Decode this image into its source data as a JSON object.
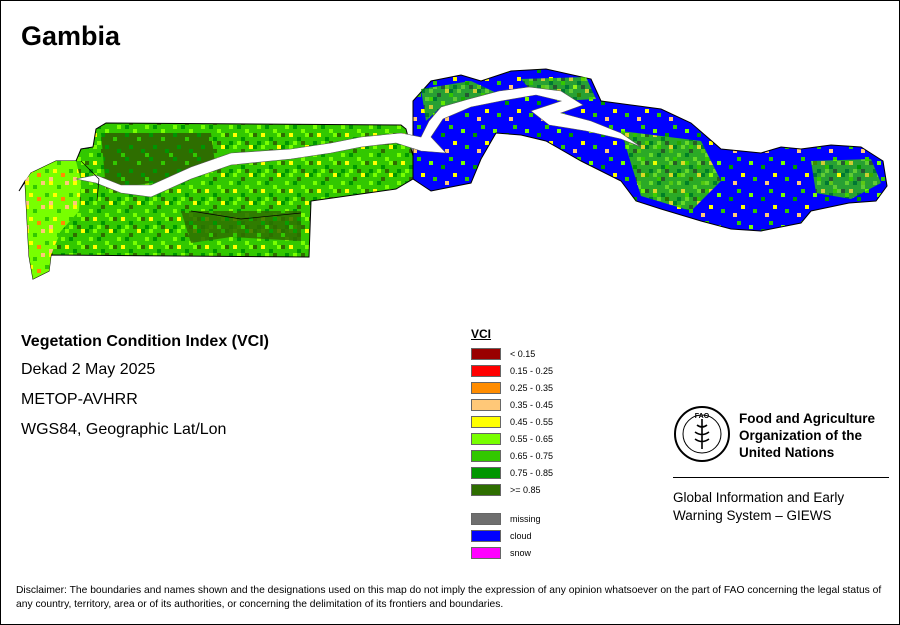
{
  "map": {
    "title": "Gambia"
  },
  "info": {
    "title": "Vegetation Condition Index (VCI)",
    "period": "Dekad 2 May 2025",
    "sensor": "METOP-AVHRR",
    "projection": "WGS84, Geographic Lat/Lon"
  },
  "legend": {
    "title": "VCI",
    "classes": [
      {
        "label": "< 0.15",
        "color": "#990000"
      },
      {
        "label": "0.15 - 0.25",
        "color": "#ff0000"
      },
      {
        "label": "0.25 - 0.35",
        "color": "#ff8c00"
      },
      {
        "label": "0.35 - 0.45",
        "color": "#ffc878"
      },
      {
        "label": "0.45 - 0.55",
        "color": "#ffff00"
      },
      {
        "label": "0.55 - 0.65",
        "color": "#78ff00"
      },
      {
        "label": "0.65 - 0.75",
        "color": "#32c800"
      },
      {
        "label": "0.75 - 0.85",
        "color": "#009600"
      },
      {
        "label": ">= 0.85",
        "color": "#2e6e00"
      }
    ],
    "special": [
      {
        "label": "missing",
        "color": "#6e6e6e"
      },
      {
        "label": "cloud",
        "color": "#0000ff"
      },
      {
        "label": "snow",
        "color": "#ff00ff"
      }
    ]
  },
  "fao": {
    "logo_text": "FAO",
    "org_lines": [
      "Food and Agriculture",
      "Organization of the",
      "United Nations"
    ],
    "giews_lines": [
      "Global Information and Early",
      "Warning System – GIEWS"
    ]
  },
  "disclaimer": "Disclaimer: The boundaries and names shown and the designations used on this map do not imply the expression of any opinion whatsoever on the part of FAO concerning the legal status of any country, territory, area or of its authorities, or concerning the delimitation of its frontiers and boundaries."
}
